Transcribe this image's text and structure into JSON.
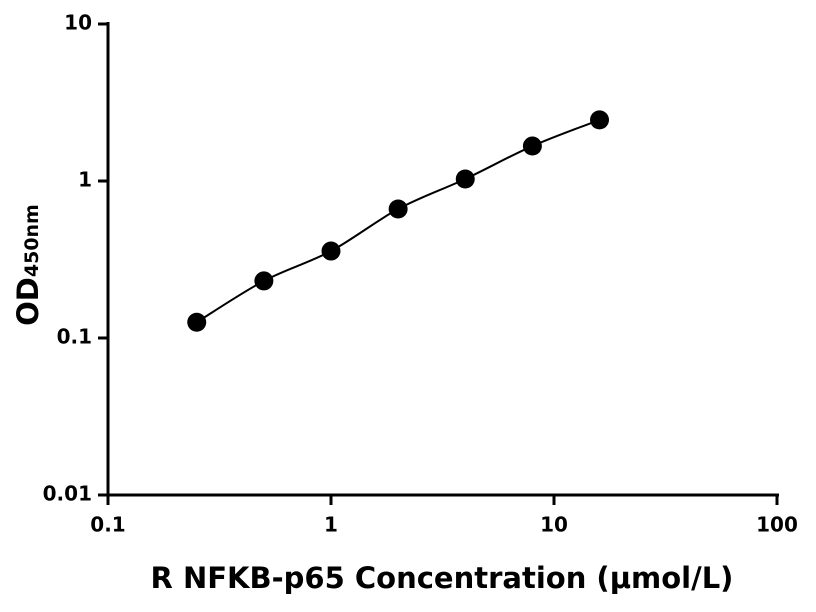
{
  "chart_data": {
    "type": "scatter",
    "x_label": "R NFKB-p65 Concentration (μmol/L)",
    "y_label": "OD",
    "y_label_subscript": "450nm",
    "x": [
      0.25,
      0.5,
      1,
      2,
      4,
      8,
      16
    ],
    "series": [
      {
        "values": [
          0.126,
          0.231,
          0.358,
          0.663,
          1.03,
          1.67,
          2.45
        ],
        "color": "#000000"
      }
    ],
    "xlim": [
      0.1,
      100
    ],
    "ylim": [
      0.01,
      10
    ],
    "xticks": [
      0.1,
      1,
      10,
      100
    ],
    "yticks": [
      0.01,
      0.1,
      1,
      10
    ],
    "xscale": "log",
    "yscale": "log",
    "line": true
  }
}
